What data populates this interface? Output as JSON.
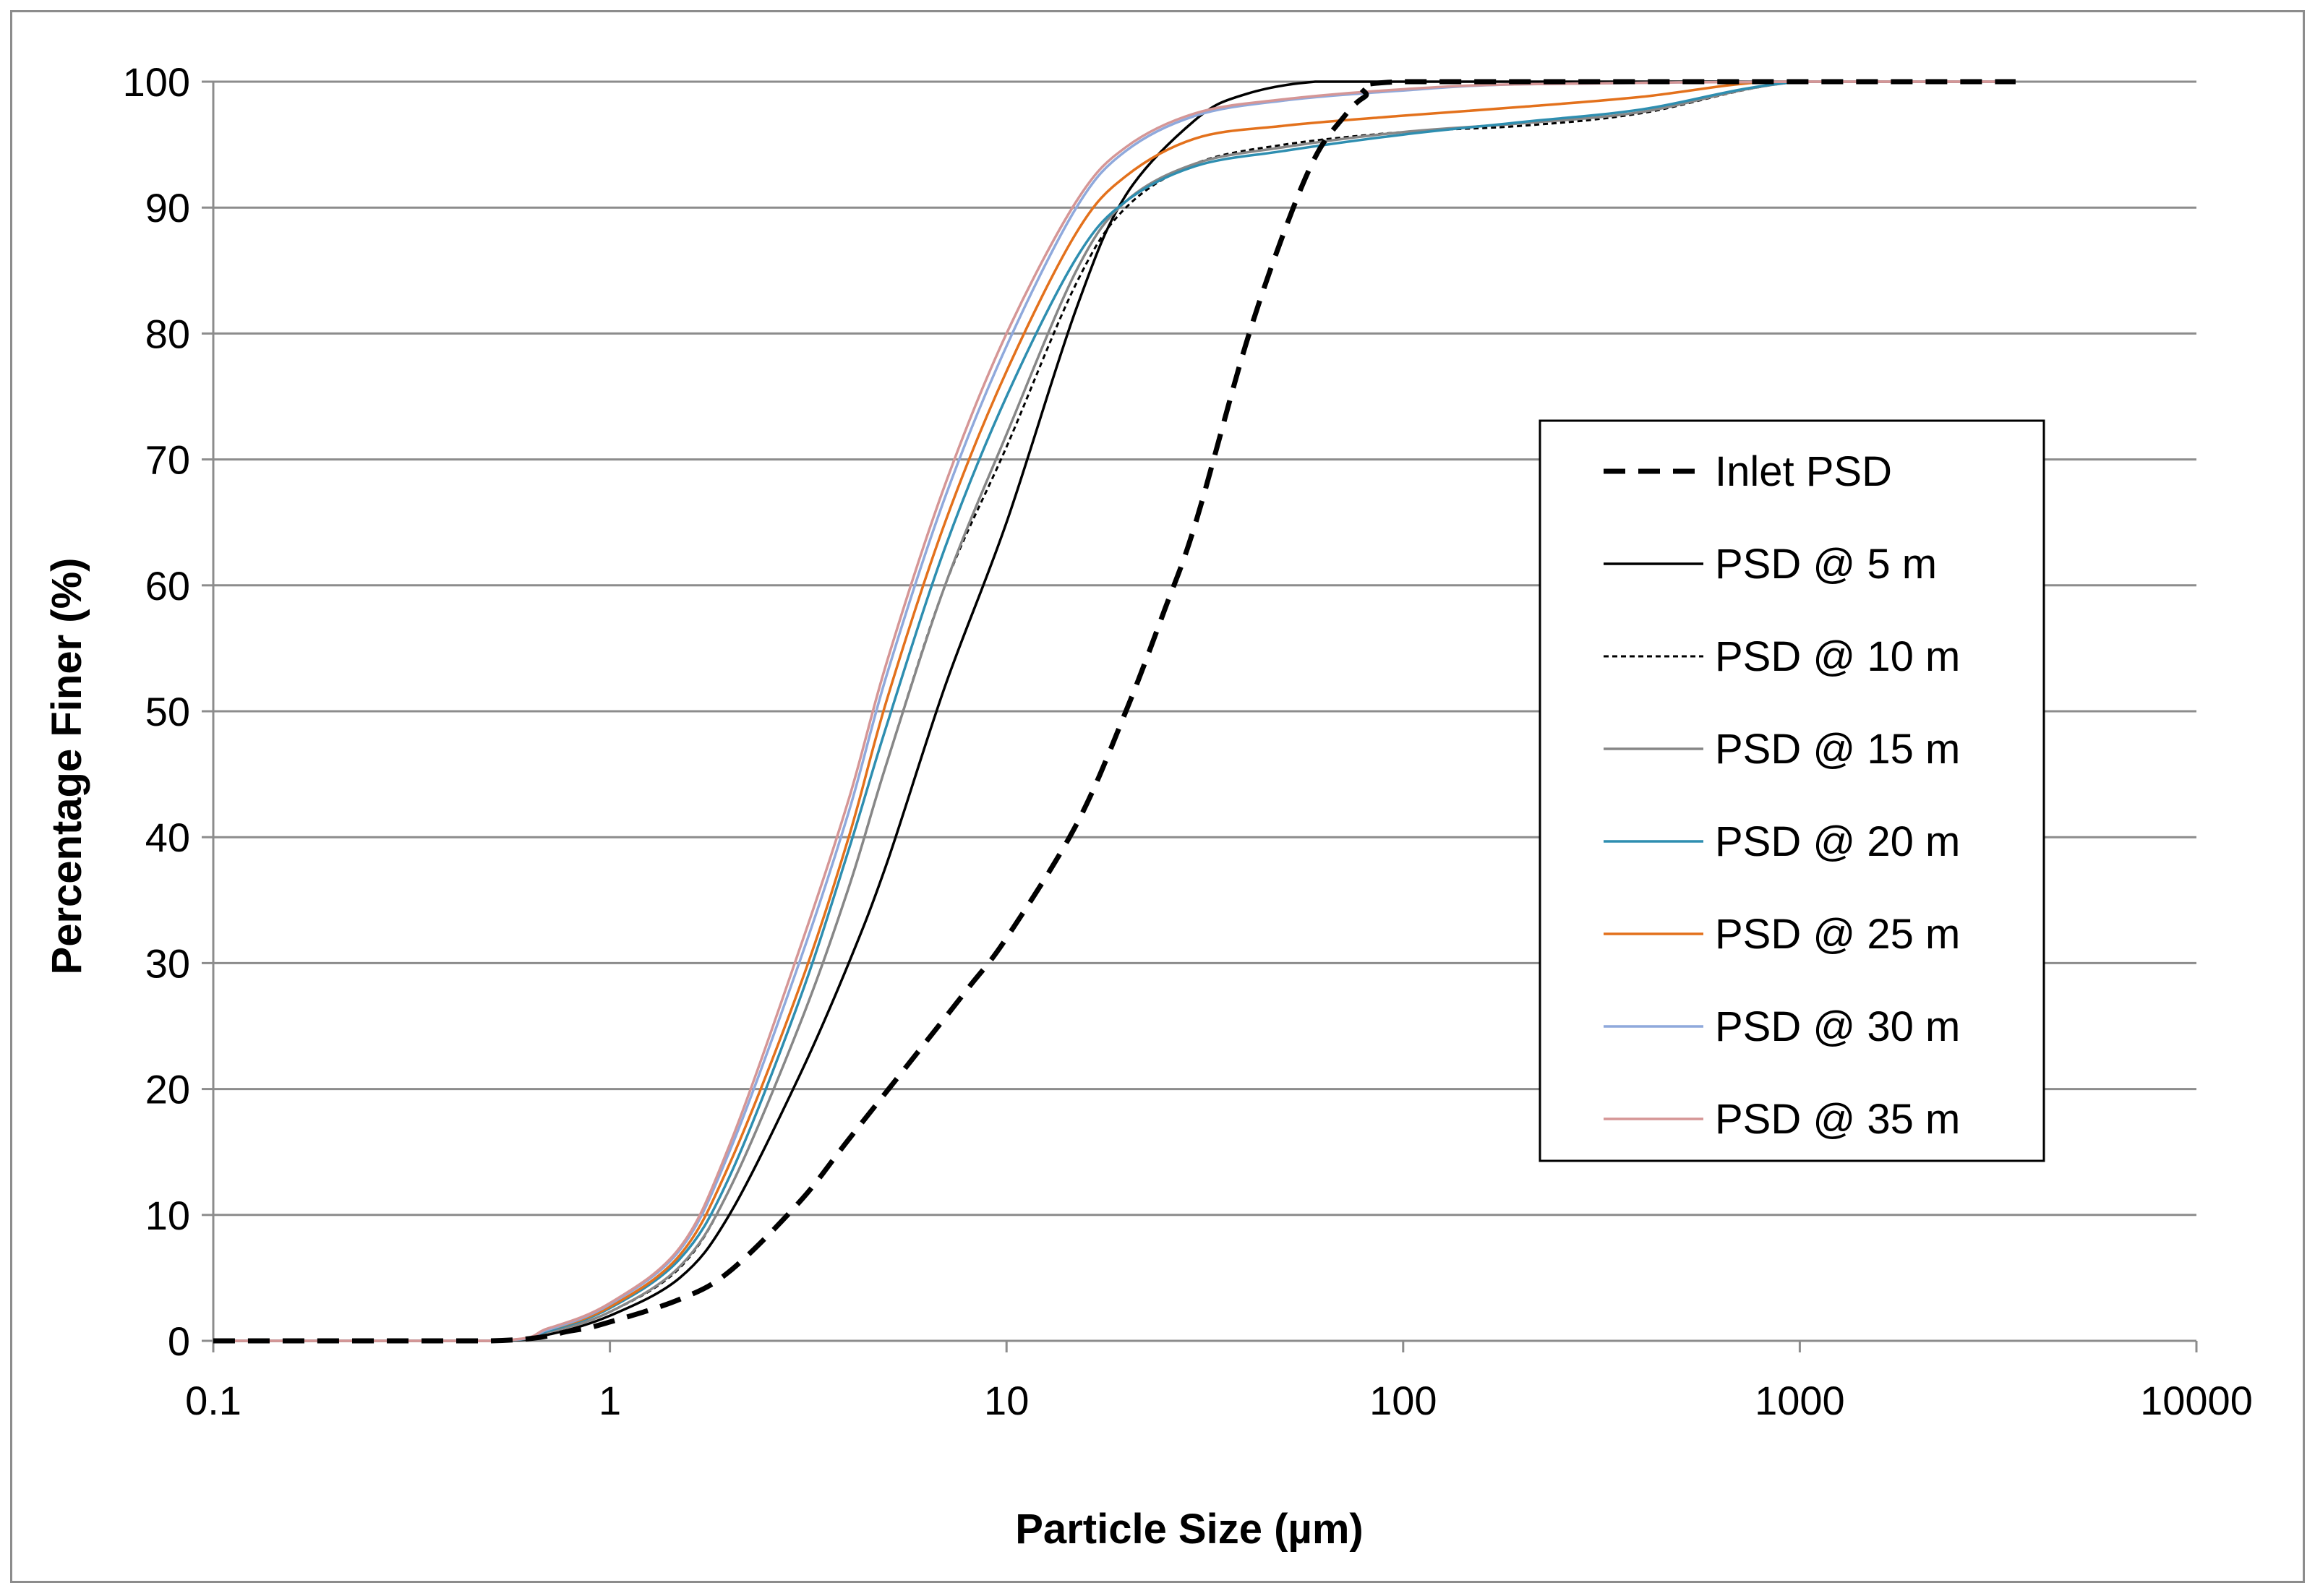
{
  "chart_data": {
    "type": "line",
    "title": "",
    "xlabel": "Particle Size (µm)",
    "ylabel": "Percentage Finer (%)",
    "xscale": "log",
    "xlim": [
      0.1,
      10000
    ],
    "ylim": [
      0,
      100
    ],
    "x_ticks": [
      0.1,
      1,
      10,
      100,
      1000,
      10000
    ],
    "x_tick_labels": [
      "0.1",
      "1",
      "10",
      "100",
      "1000",
      "10000"
    ],
    "y_ticks": [
      0,
      10,
      20,
      30,
      40,
      50,
      60,
      70,
      80,
      90,
      100
    ],
    "y_tick_labels": [
      "0",
      "10",
      "20",
      "30",
      "40",
      "50",
      "60",
      "70",
      "80",
      "90",
      "100"
    ],
    "grid": "horizontal",
    "legend_position": "right",
    "series": [
      {
        "name": "Inlet PSD",
        "color": "#000000",
        "style": "dashed-thick",
        "x": [
          0.1,
          0.5,
          0.8,
          1,
          1.5,
          2,
          3,
          4,
          6,
          8,
          10,
          15,
          20,
          25,
          30,
          40,
          50,
          60,
          70,
          80,
          100,
          1000,
          3500
        ],
        "y": [
          0,
          0,
          0.8,
          1.5,
          3.3,
          5.5,
          11,
          16,
          23,
          28,
          32,
          41,
          50,
          58,
          65,
          79,
          88,
          94,
          97,
          98.8,
          100,
          100,
          100
        ]
      },
      {
        "name": "PSD @ 5 m",
        "color": "#000000",
        "style": "solid",
        "x": [
          0.1,
          0.5,
          0.7,
          1,
          1.5,
          2,
          3,
          4,
          5,
          7,
          10,
          15,
          20,
          30,
          40,
          60,
          100,
          1000,
          3500
        ],
        "y": [
          0,
          0,
          0.5,
          2,
          5,
          10,
          21,
          30,
          38,
          52,
          65,
          82,
          91,
          97,
          99,
          100,
          100,
          100,
          100
        ]
      },
      {
        "name": "PSD @ 10 m",
        "color": "#000000",
        "style": "dotted",
        "x": [
          0.1,
          0.5,
          0.7,
          1,
          1.5,
          2,
          3,
          4,
          5,
          7,
          10,
          15,
          20,
          30,
          50,
          100,
          200,
          400,
          1000,
          3500
        ],
        "y": [
          0,
          0,
          0.7,
          2.3,
          5.8,
          12,
          25,
          36,
          46,
          60,
          71,
          84,
          90,
          93.5,
          95,
          96,
          96.5,
          97.5,
          100,
          100
        ]
      },
      {
        "name": "PSD @ 15 m",
        "color": "#878787",
        "style": "solid",
        "x": [
          0.1,
          0.5,
          0.7,
          1,
          1.5,
          2,
          3,
          4,
          5,
          7,
          10,
          15,
          20,
          30,
          50,
          100,
          200,
          400,
          1000,
          3500
        ],
        "y": [
          0,
          0,
          0.7,
          2.3,
          5.9,
          12,
          25,
          36,
          46,
          60,
          72,
          85,
          90.5,
          93.5,
          94.8,
          96,
          96.7,
          97.6,
          100,
          100
        ]
      },
      {
        "name": "PSD @ 20 m",
        "color": "#2e8eb0",
        "style": "solid",
        "x": [
          0.1,
          0.5,
          0.7,
          1,
          1.5,
          2,
          3,
          4,
          5,
          7,
          10,
          15,
          20,
          30,
          50,
          100,
          200,
          400,
          1000,
          3500
        ],
        "y": [
          0,
          0,
          0.8,
          2.6,
          6.5,
          13,
          27,
          39,
          49,
          63,
          75,
          86,
          90.5,
          93.3,
          94.5,
          95.8,
          96.8,
          97.8,
          100,
          100
        ]
      },
      {
        "name": "PSD @ 25 m",
        "color": "#e3711c",
        "style": "solid",
        "x": [
          0.1,
          0.5,
          0.7,
          1,
          1.5,
          2,
          3,
          4,
          5,
          7,
          10,
          15,
          20,
          30,
          50,
          100,
          200,
          400,
          700,
          1000,
          3500
        ],
        "y": [
          0,
          0,
          0.9,
          2.7,
          6.8,
          14,
          28,
          40,
          51,
          65,
          77,
          88,
          92.5,
          95.5,
          96.5,
          97.3,
          98,
          98.8,
          99.8,
          100,
          100
        ]
      },
      {
        "name": "PSD @ 30 m",
        "color": "#8fa9dc",
        "style": "solid",
        "x": [
          0.1,
          0.5,
          0.7,
          1,
          1.5,
          2,
          3,
          4,
          5,
          7,
          10,
          15,
          20,
          30,
          50,
          100,
          200,
          1000,
          3500
        ],
        "y": [
          0,
          0,
          0.9,
          2.9,
          7.2,
          15,
          30,
          42,
          53,
          67,
          79,
          90,
          94.5,
          97.3,
          98.5,
          99.3,
          99.8,
          100,
          100
        ]
      },
      {
        "name": "PSD @ 35 m",
        "color": "#d59696",
        "style": "solid",
        "x": [
          0.1,
          0.5,
          0.7,
          1,
          1.5,
          2,
          3,
          4,
          5,
          7,
          10,
          15,
          20,
          30,
          50,
          100,
          200,
          1000,
          3500
        ],
        "y": [
          0,
          0,
          1,
          3,
          7.4,
          15.5,
          31,
          43,
          54,
          68,
          80,
          90.5,
          94.8,
          97.5,
          98.6,
          99.4,
          99.8,
          100,
          100
        ]
      }
    ]
  }
}
